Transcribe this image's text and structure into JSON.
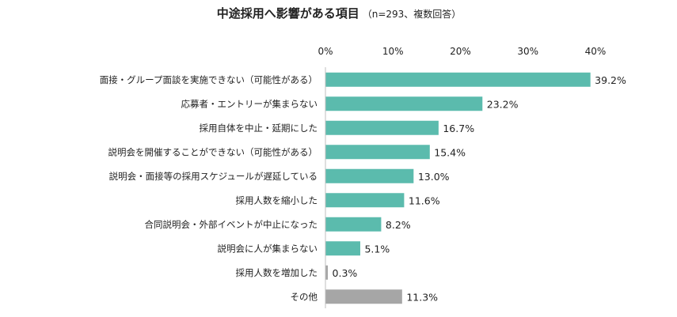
{
  "chart_data": {
    "type": "bar",
    "orientation": "horizontal",
    "title": "中途採用へ影響がある項目",
    "subtitle": "（n=293、複数回答）",
    "xlim": [
      0,
      40
    ],
    "ticks": [
      "0%",
      "10%",
      "20%",
      "30%",
      "40%"
    ],
    "tick_values": [
      0,
      10,
      20,
      30,
      40
    ],
    "grid": false,
    "colors": {
      "main": "#5BBBAD",
      "other": "#A6A6A6"
    },
    "categories": [
      "面接・グループ面談を実施できない（可能性がある）",
      "応募者・エントリーが集まらない",
      "採用自体を中止・延期にした",
      "説明会を開催することができない（可能性がある）",
      "説明会・面接等の採用スケジュールが遅延している",
      "採用人数を縮小した",
      "合同説明会・外部イベントが中止になった",
      "説明会に人が集まらない",
      "採用人数を増加した",
      "その他"
    ],
    "values": [
      39.2,
      23.2,
      16.7,
      15.4,
      13.0,
      11.6,
      8.2,
      5.1,
      0.3,
      11.3
    ],
    "labels": [
      "39.2%",
      "23.2%",
      "16.7%",
      "15.4%",
      "13.0%",
      "11.6%",
      "8.2%",
      "5.1%",
      "0.3%",
      "11.3%"
    ],
    "bar_color_keys": [
      "main",
      "main",
      "main",
      "main",
      "main",
      "main",
      "main",
      "main",
      "other",
      "other"
    ]
  }
}
